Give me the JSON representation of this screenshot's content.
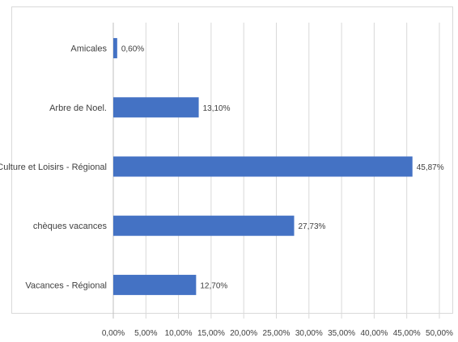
{
  "chart_data": {
    "type": "bar",
    "orientation": "horizontal",
    "categories": [
      "Amicales",
      "Arbre de Noel.",
      "Culture et Loisirs - Régional",
      "chèques vacances",
      "Vacances - Régional"
    ],
    "values": [
      0.6,
      13.1,
      45.87,
      27.73,
      12.7
    ],
    "data_labels": [
      "0,60%",
      "13,10%",
      "45,87%",
      "27,73%",
      "12,70%"
    ],
    "xlim": [
      0,
      50
    ],
    "x_ticks": [
      0,
      5,
      10,
      15,
      20,
      25,
      30,
      35,
      40,
      45,
      50
    ],
    "x_tick_labels": [
      "0,00%",
      "5,00%",
      "10,00%",
      "15,00%",
      "20,00%",
      "25,00%",
      "30,00%",
      "35,00%",
      "40,00%",
      "45,00%",
      "50,00%"
    ],
    "title": "",
    "xlabel": "",
    "ylabel": "",
    "grid": "vertical",
    "legend": "none",
    "colors": {
      "bar": "#4472c4",
      "grid": "#d9d9d9",
      "text": "#404040"
    }
  }
}
